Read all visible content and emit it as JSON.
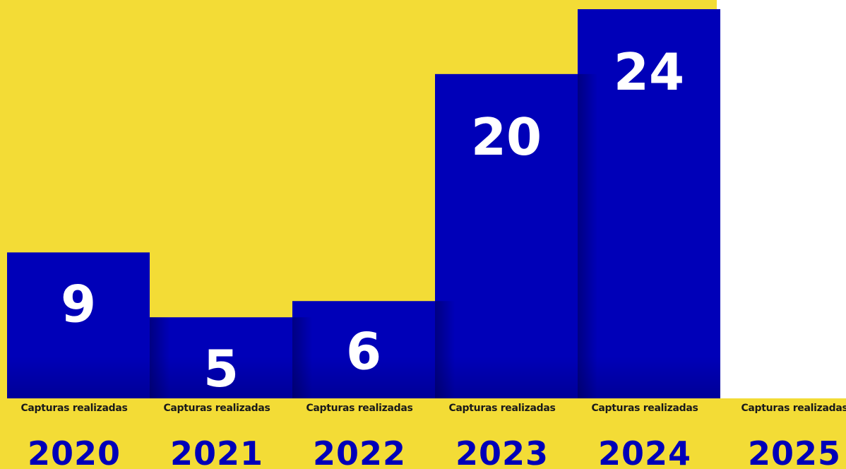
{
  "colors": {
    "background": "#f3dc36",
    "bar": "#0000b8",
    "bar_value_text": "#ffffff",
    "caption_text": "#1a1a1a",
    "year_text": "#0000b8"
  },
  "chart_data": {
    "type": "bar",
    "title": "",
    "xlabel": "",
    "ylabel": "",
    "categories": [
      "2020",
      "2021",
      "2022",
      "2023",
      "2024",
      "2025"
    ],
    "category_caption": "Capturas realizadas",
    "values": [
      9,
      5,
      6,
      20,
      24,
      null
    ],
    "value_labels": [
      "9",
      "5",
      "6",
      "20",
      "24",
      ""
    ],
    "ylim": [
      0,
      25
    ],
    "grid": false,
    "legend": "none"
  }
}
